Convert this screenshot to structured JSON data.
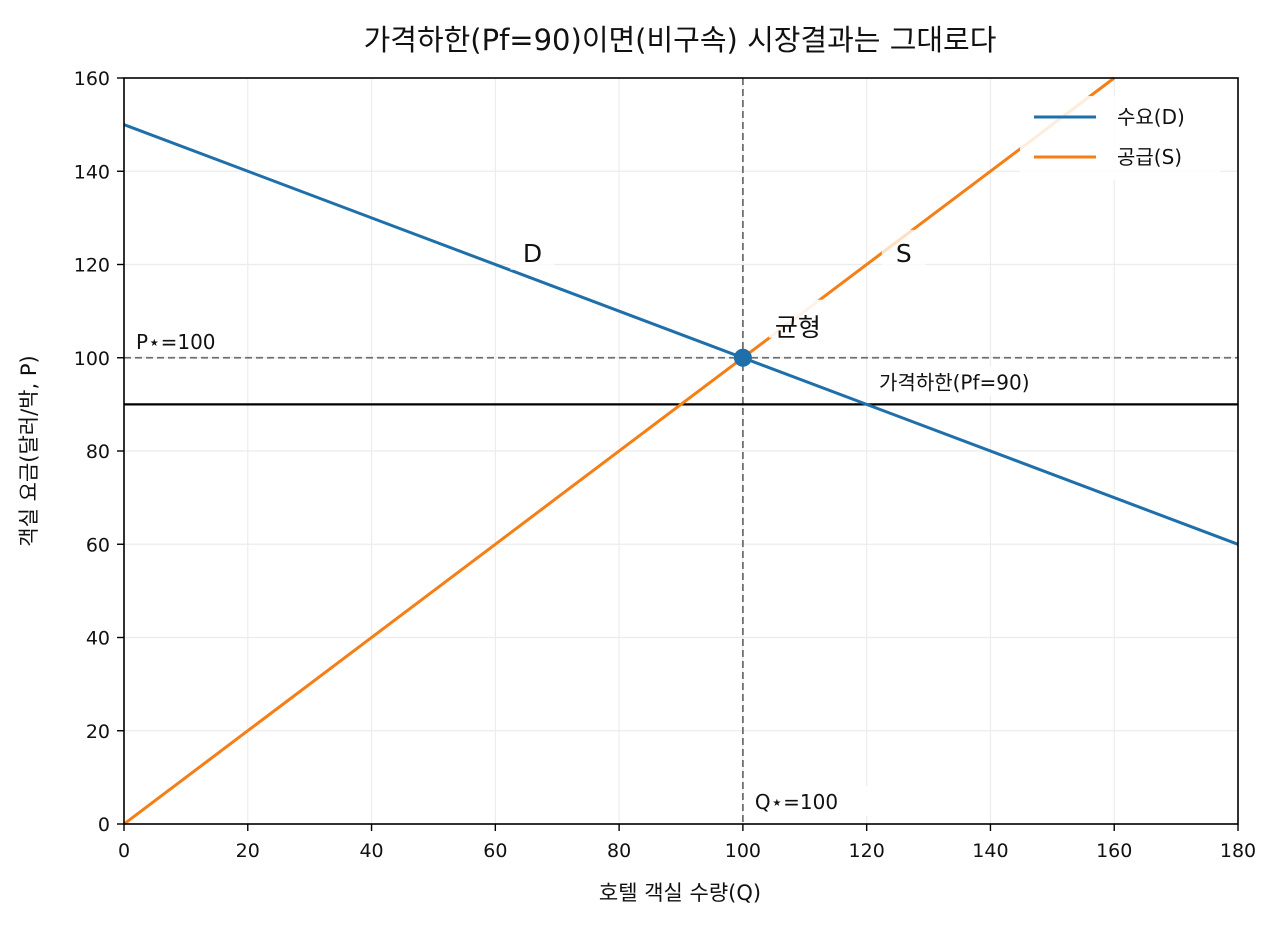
{
  "chart_data": {
    "type": "line",
    "title": "가격하한(Pf=90)이면(비구속) 시장결과는 그대로다",
    "xlabel": "호텔 객실 수량(Q)",
    "ylabel": "객실 요금(달러/박, P)",
    "xlim": [
      0,
      180
    ],
    "ylim": [
      0,
      160
    ],
    "xticks": [
      0,
      20,
      40,
      60,
      80,
      100,
      120,
      140,
      160,
      180
    ],
    "yticks": [
      0,
      20,
      40,
      60,
      80,
      100,
      120,
      140,
      160
    ],
    "grid": true,
    "legend_position": "top-right",
    "series": [
      {
        "name": "수요(D)",
        "color": "#1f6fab",
        "x": [
          0,
          180
        ],
        "y": [
          150,
          60
        ]
      },
      {
        "name": "공급(S)",
        "color": "#f57f17",
        "x": [
          0,
          160
        ],
        "y": [
          0,
          160
        ]
      }
    ],
    "price_floor": {
      "value": 90,
      "label": "가격하한(Pf=90)",
      "color": "#000000"
    },
    "equilibrium": {
      "q": 100,
      "p": 100,
      "label": "균형",
      "p_label": "P⋆=100",
      "q_label": "Q⋆=100",
      "color": "#1f6fab"
    },
    "curve_labels": [
      {
        "text": "D",
        "x": 66,
        "y": 121
      },
      {
        "text": "S",
        "x": 126,
        "y": 121
      }
    ]
  }
}
